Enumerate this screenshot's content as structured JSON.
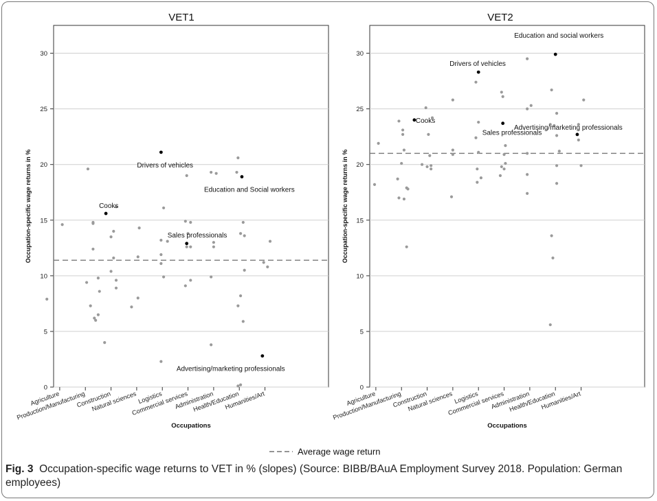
{
  "chart_data": [
    {
      "type": "scatter",
      "title": "VET1",
      "ylabel": "Occupation-specific wage returns in %",
      "xlabel": "Occupations",
      "ylim": [
        0,
        32.5
      ],
      "yticks": [
        0,
        5,
        10,
        15,
        20,
        25,
        30
      ],
      "categories": [
        "Agriculture",
        "Production/Manufacturing",
        "Construction",
        "Natural sciences",
        "Logistics",
        "Commercial services",
        "Administration",
        "Health/Education",
        "Humanities/Art"
      ],
      "grid": true,
      "average_wage_return": 11.4,
      "points": [
        {
          "x": 0.1,
          "y": 14.6
        },
        {
          "x": -0.5,
          "y": 7.9
        },
        {
          "x": 1.1,
          "y": 19.6
        },
        {
          "x": 1.2,
          "y": 7.3
        },
        {
          "x": 1.35,
          "y": 6.2
        },
        {
          "x": 1.4,
          "y": 6.0
        },
        {
          "x": 1.5,
          "y": 6.5
        },
        {
          "x": 1.3,
          "y": 12.4
        },
        {
          "x": 1.3,
          "y": 14.7
        },
        {
          "x": 1.3,
          "y": 14.8
        },
        {
          "x": 1.5,
          "y": 9.8
        },
        {
          "x": 1.55,
          "y": 8.6
        },
        {
          "x": 1.05,
          "y": 9.4
        },
        {
          "x": 1.75,
          "y": 4.0
        },
        {
          "x": 2.2,
          "y": 16.2
        },
        {
          "x": 2.0,
          "y": 13.5
        },
        {
          "x": 2.0,
          "y": 10.4
        },
        {
          "x": 2.1,
          "y": 11.6
        },
        {
          "x": 2.2,
          "y": 9.6
        },
        {
          "x": 2.2,
          "y": 8.9
        },
        {
          "x": 2.1,
          "y": 14.0
        },
        {
          "x": 2.8,
          "y": 7.2
        },
        {
          "x": 3.05,
          "y": 8.0
        },
        {
          "x": 3.05,
          "y": 11.7
        },
        {
          "x": 3.1,
          "y": 14.3
        },
        {
          "x": 3.95,
          "y": 13.2
        },
        {
          "x": 3.95,
          "y": 11.9
        },
        {
          "x": 3.95,
          "y": 11.1
        },
        {
          "x": 3.95,
          "y": 2.3
        },
        {
          "x": 4.05,
          "y": 16.1
        },
        {
          "x": 4.05,
          "y": 9.9
        },
        {
          "x": 4.2,
          "y": 13.1
        },
        {
          "x": 4.95,
          "y": 19.0
        },
        {
          "x": 4.9,
          "y": 14.9
        },
        {
          "x": 5.1,
          "y": 14.8
        },
        {
          "x": 5.0,
          "y": 13.8
        },
        {
          "x": 4.95,
          "y": 12.6
        },
        {
          "x": 5.1,
          "y": 12.6
        },
        {
          "x": 4.9,
          "y": 9.1
        },
        {
          "x": 5.1,
          "y": 9.6
        },
        {
          "x": 5.9,
          "y": 19.3
        },
        {
          "x": 6.1,
          "y": 19.2
        },
        {
          "x": 6.0,
          "y": 13.0
        },
        {
          "x": 6.0,
          "y": 12.6
        },
        {
          "x": 5.9,
          "y": 9.9
        },
        {
          "x": 5.9,
          "y": 3.8
        },
        {
          "x": 6.95,
          "y": 20.6
        },
        {
          "x": 6.9,
          "y": 19.3
        },
        {
          "x": 7.05,
          "y": 13.8
        },
        {
          "x": 7.15,
          "y": 14.8
        },
        {
          "x": 7.2,
          "y": 13.6
        },
        {
          "x": 7.2,
          "y": 10.5
        },
        {
          "x": 7.05,
          "y": 8.2
        },
        {
          "x": 6.95,
          "y": 7.3
        },
        {
          "x": 7.15,
          "y": 5.9
        },
        {
          "x": 6.95,
          "y": 0.1
        },
        {
          "x": 7.05,
          "y": 0.2
        },
        {
          "x": 7.95,
          "y": 11.2
        },
        {
          "x": 8.1,
          "y": 10.8
        },
        {
          "x": 8.2,
          "y": 13.1
        }
      ],
      "highlighted": [
        {
          "label": "Cooks",
          "x": 1.8,
          "y": 15.6
        },
        {
          "label": "Drivers of vehicles",
          "x": 3.95,
          "y": 21.1
        },
        {
          "label": "Sales professionals",
          "x": 4.95,
          "y": 12.9
        },
        {
          "label": "Education and Social workers",
          "x": 7.1,
          "y": 18.9
        },
        {
          "label": "Advertising/marketing professionals",
          "x": 7.9,
          "y": 2.8
        }
      ]
    },
    {
      "type": "scatter",
      "title": "VET2",
      "ylabel": "Occupation-specific wage returns in %",
      "xlabel": "Occupations",
      "ylim": [
        0,
        32.5
      ],
      "yticks": [
        0,
        5,
        10,
        15,
        20,
        25,
        30
      ],
      "categories": [
        "Agriculture",
        "Production/Manufacturing",
        "Construction",
        "Natural sciences",
        "Logistics",
        "Commercial services",
        "Administration",
        "Health/Education",
        "Humanities/Art"
      ],
      "grid": true,
      "average_wage_return": 21.0,
      "points": [
        {
          "x": 0.1,
          "y": 21.9
        },
        {
          "x": -0.05,
          "y": 18.2
        },
        {
          "x": 0.9,
          "y": 23.9
        },
        {
          "x": 1.05,
          "y": 23.1
        },
        {
          "x": 1.1,
          "y": 21.3
        },
        {
          "x": 1.05,
          "y": 22.7
        },
        {
          "x": 1.0,
          "y": 20.1
        },
        {
          "x": 1.2,
          "y": 17.9
        },
        {
          "x": 1.25,
          "y": 17.8
        },
        {
          "x": 0.85,
          "y": 18.7
        },
        {
          "x": 0.9,
          "y": 17.0
        },
        {
          "x": 1.1,
          "y": 16.9
        },
        {
          "x": 1.2,
          "y": 12.6
        },
        {
          "x": 1.95,
          "y": 25.1
        },
        {
          "x": 2.05,
          "y": 22.7
        },
        {
          "x": 2.1,
          "y": 20.8
        },
        {
          "x": 1.8,
          "y": 20.0
        },
        {
          "x": 2.0,
          "y": 19.8
        },
        {
          "x": 2.15,
          "y": 19.9
        },
        {
          "x": 2.15,
          "y": 19.6
        },
        {
          "x": 2.2,
          "y": 24.2
        },
        {
          "x": 3.0,
          "y": 25.8
        },
        {
          "x": 3.0,
          "y": 21.3
        },
        {
          "x": 3.0,
          "y": 20.9
        },
        {
          "x": 2.95,
          "y": 17.1
        },
        {
          "x": 3.9,
          "y": 27.4
        },
        {
          "x": 4.0,
          "y": 23.8
        },
        {
          "x": 3.9,
          "y": 22.4
        },
        {
          "x": 4.0,
          "y": 21.1
        },
        {
          "x": 3.95,
          "y": 19.6
        },
        {
          "x": 3.95,
          "y": 18.4
        },
        {
          "x": 4.1,
          "y": 18.8
        },
        {
          "x": 4.9,
          "y": 26.5
        },
        {
          "x": 4.95,
          "y": 26.1
        },
        {
          "x": 5.05,
          "y": 21.7
        },
        {
          "x": 5.0,
          "y": 20.9
        },
        {
          "x": 4.9,
          "y": 19.8
        },
        {
          "x": 5.05,
          "y": 20.1
        },
        {
          "x": 5.0,
          "y": 19.6
        },
        {
          "x": 4.85,
          "y": 19.0
        },
        {
          "x": 5.9,
          "y": 29.5
        },
        {
          "x": 5.9,
          "y": 25.0
        },
        {
          "x": 6.05,
          "y": 25.3
        },
        {
          "x": 5.9,
          "y": 21.0
        },
        {
          "x": 5.9,
          "y": 19.1
        },
        {
          "x": 5.9,
          "y": 17.4
        },
        {
          "x": 6.85,
          "y": 26.7
        },
        {
          "x": 6.8,
          "y": 23.6
        },
        {
          "x": 6.95,
          "y": 23.5
        },
        {
          "x": 7.05,
          "y": 24.6
        },
        {
          "x": 7.05,
          "y": 22.6
        },
        {
          "x": 7.15,
          "y": 21.2
        },
        {
          "x": 7.05,
          "y": 19.9
        },
        {
          "x": 7.05,
          "y": 18.3
        },
        {
          "x": 6.85,
          "y": 13.6
        },
        {
          "x": 6.9,
          "y": 11.6
        },
        {
          "x": 6.8,
          "y": 5.6
        },
        {
          "x": 7.9,
          "y": 23.6
        },
        {
          "x": 7.9,
          "y": 22.2
        },
        {
          "x": 8.1,
          "y": 25.8
        },
        {
          "x": 8.0,
          "y": 19.9
        }
      ],
      "highlighted": [
        {
          "label": "Cooks",
          "x": 1.5,
          "y": 24.0
        },
        {
          "label": "Drivers of vehicles",
          "x": 4.0,
          "y": 28.3
        },
        {
          "label": "Sales professionals",
          "x": 4.95,
          "y": 23.7
        },
        {
          "label": "Education and social workers",
          "x": 7.0,
          "y": 29.9
        },
        {
          "label": "Advertising/marketing professionals",
          "x": 7.85,
          "y": 22.7
        }
      ]
    }
  ],
  "legend": {
    "average_label": "Average wage return"
  },
  "caption": {
    "fig_label": "Fig. 3",
    "text": "Occupation-specific wage returns to VET in % (slopes)  (Source: BIBB/BAuA Employment Survey 2018. Population: German employees)"
  }
}
